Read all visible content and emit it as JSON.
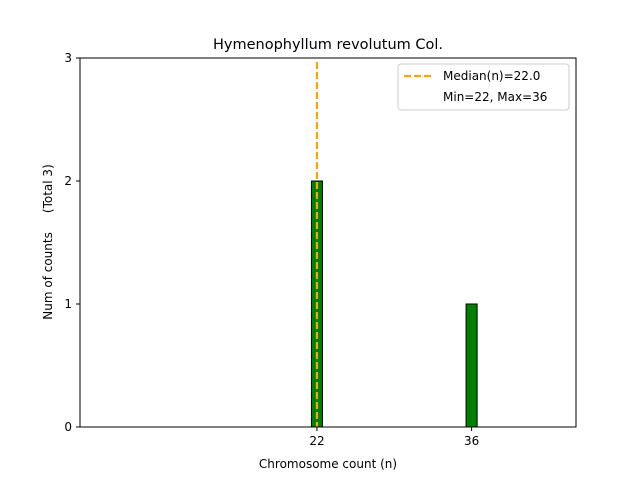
{
  "chart_data": {
    "type": "bar",
    "title": "Hymenophyllum revolutum Col.",
    "xlabel": "Chromosome count (n)",
    "ylabel": "Num of counts     (Total 3)",
    "x": [
      22,
      36
    ],
    "values": [
      2,
      1
    ],
    "bar_color": "#008000",
    "xlim": [
      0.55,
      45.45
    ],
    "ylim": [
      0,
      3
    ],
    "xticks": [
      22,
      36
    ],
    "yticks": [
      0,
      1,
      2,
      3
    ],
    "median": {
      "value": 22.0,
      "label": "Median(n)=22.0",
      "color": "#ffa500"
    },
    "legend": {
      "position": "top-right",
      "entries": [
        "Median(n)=22.0",
        "Min=22, Max=36"
      ]
    }
  }
}
